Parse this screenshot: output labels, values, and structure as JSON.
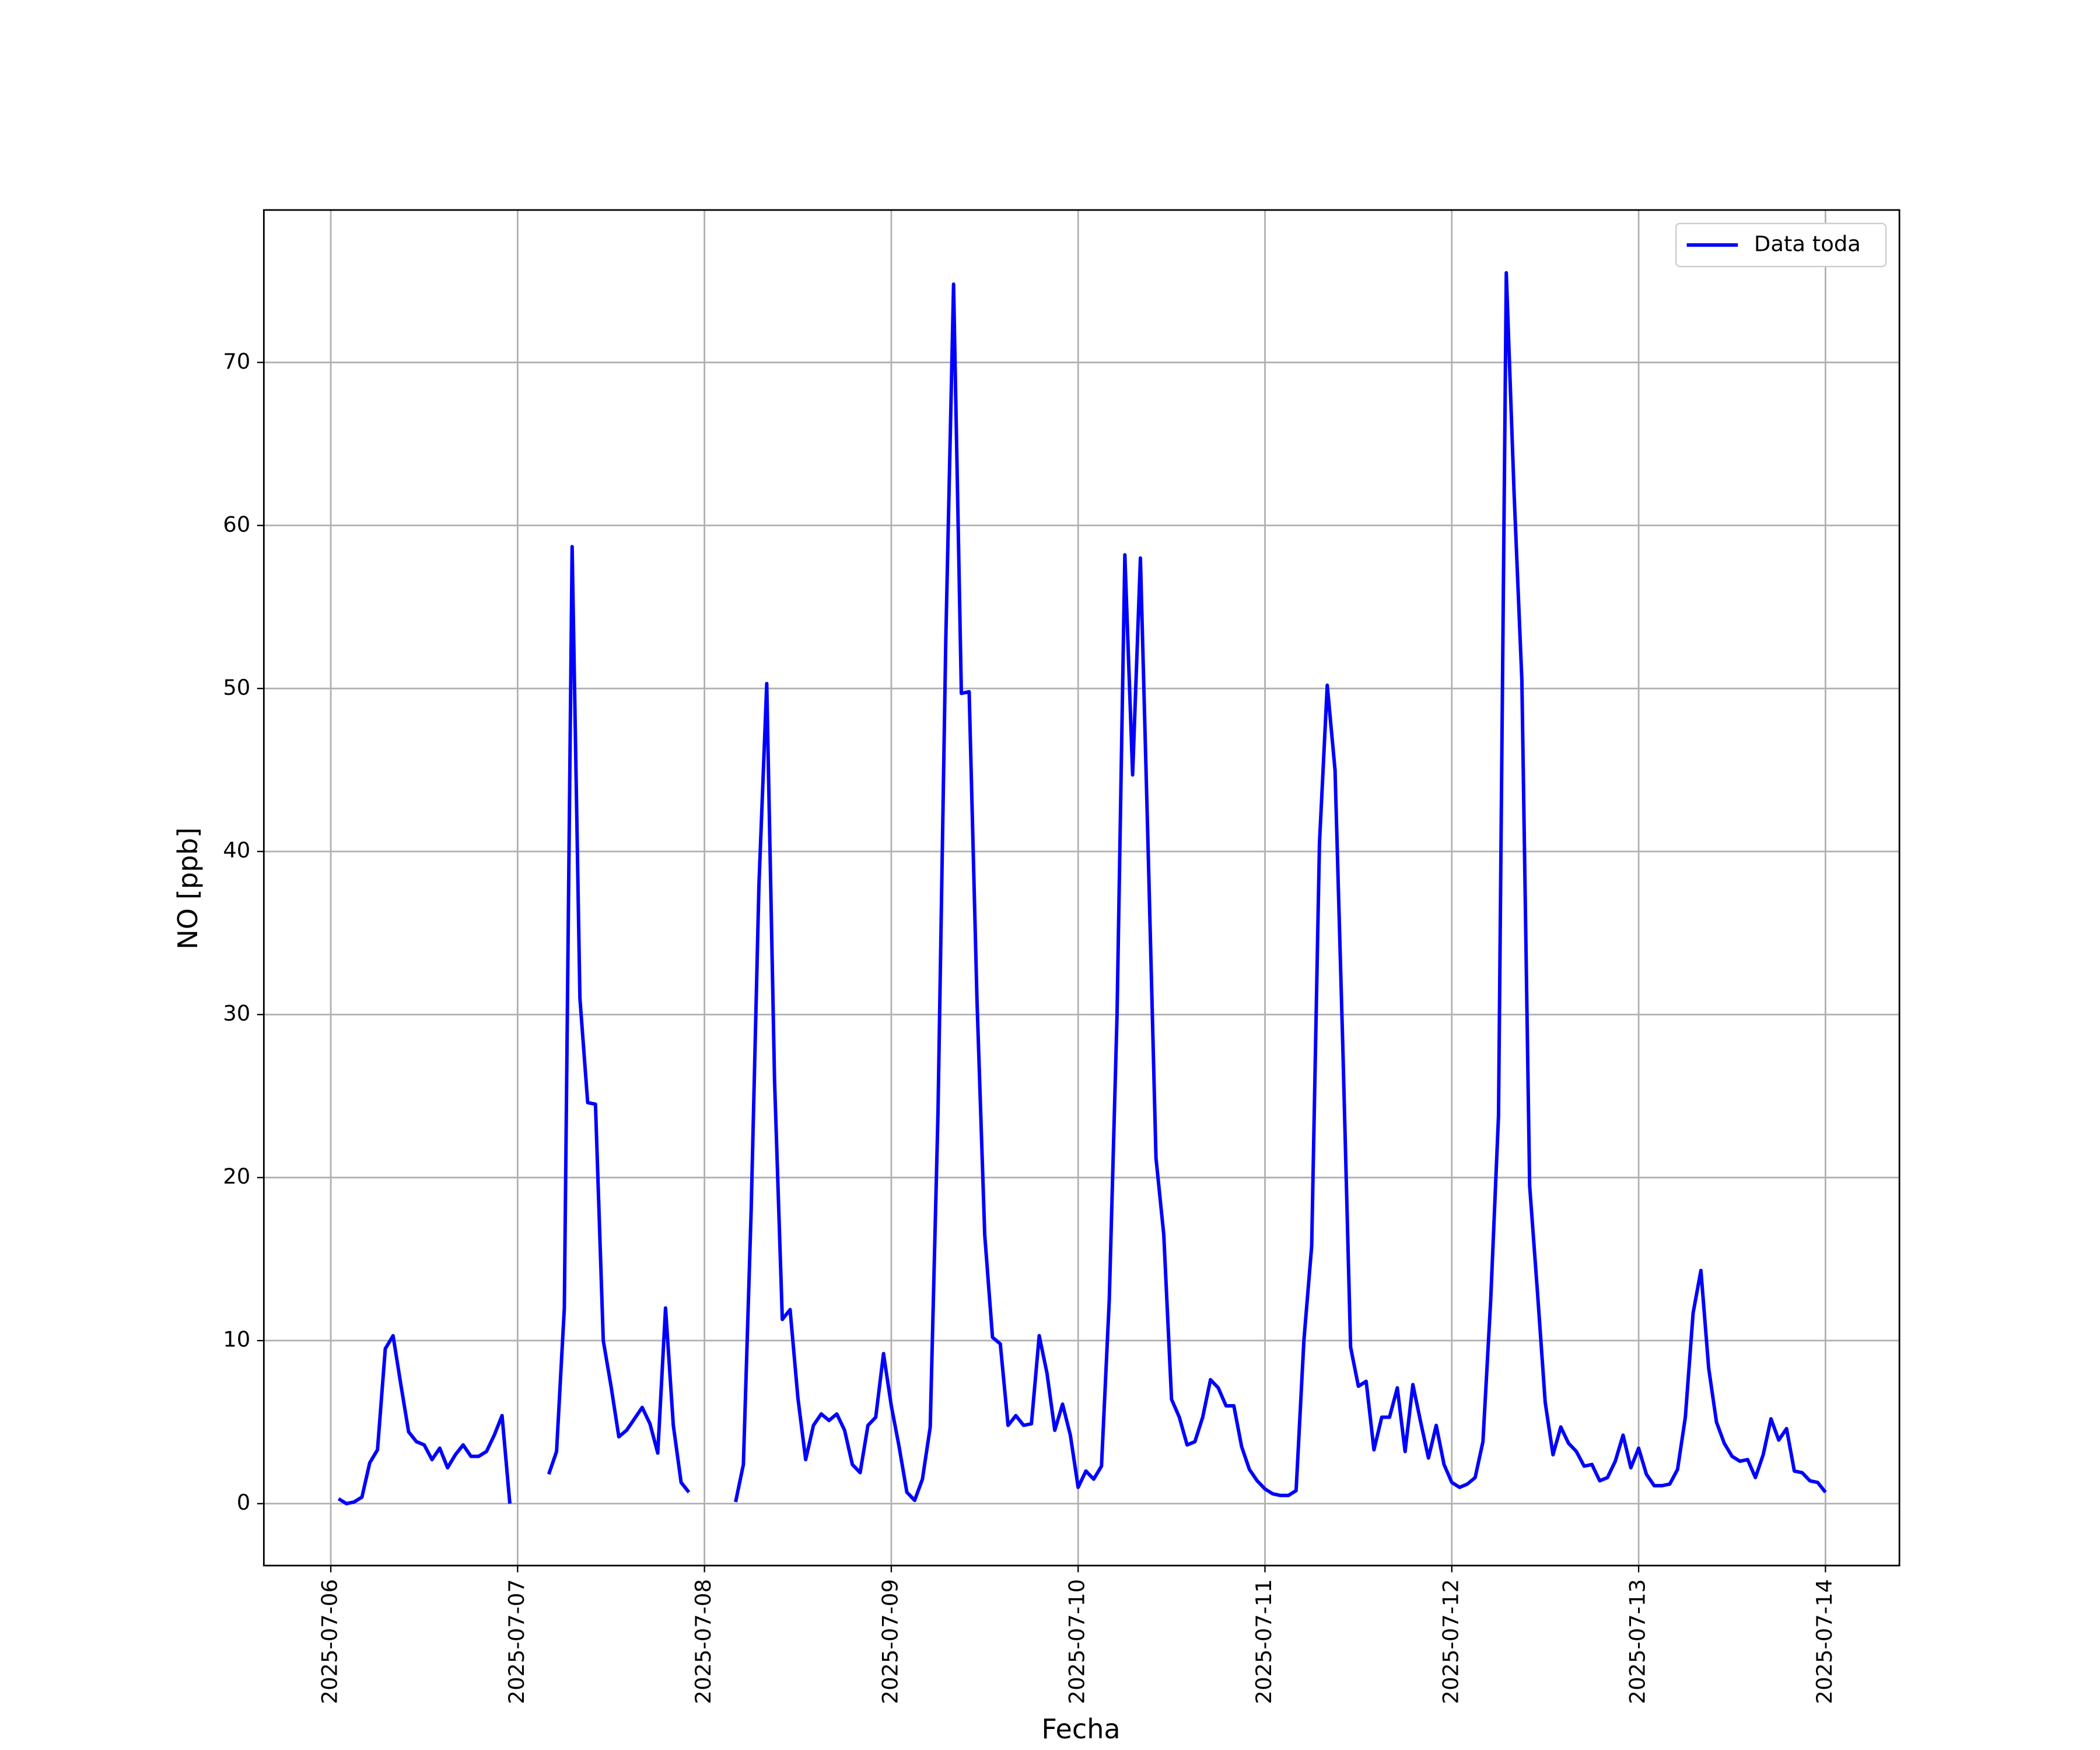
{
  "chart_data": {
    "type": "line",
    "xlabel": "Fecha",
    "ylabel": "NO [ppb]",
    "x": [
      "2025-07-06 01:00",
      "2025-07-06 02:00",
      "2025-07-06 03:00",
      "2025-07-06 04:00",
      "2025-07-06 05:00",
      "2025-07-06 06:00",
      "2025-07-06 07:00",
      "2025-07-06 08:00",
      "2025-07-06 09:00",
      "2025-07-06 10:00",
      "2025-07-06 11:00",
      "2025-07-06 12:00",
      "2025-07-06 13:00",
      "2025-07-06 14:00",
      "2025-07-06 15:00",
      "2025-07-06 16:00",
      "2025-07-06 17:00",
      "2025-07-06 18:00",
      "2025-07-06 19:00",
      "2025-07-06 20:00",
      "2025-07-06 21:00",
      "2025-07-06 22:00",
      "2025-07-06 23:00",
      "2025-07-07 00:00",
      "2025-07-07 01:00",
      "2025-07-07 02:00",
      "2025-07-07 03:00",
      "2025-07-07 04:00",
      "2025-07-07 05:00",
      "2025-07-07 06:00",
      "2025-07-07 07:00",
      "2025-07-07 08:00",
      "2025-07-07 09:00",
      "2025-07-07 10:00",
      "2025-07-07 11:00",
      "2025-07-07 12:00",
      "2025-07-07 13:00",
      "2025-07-07 14:00",
      "2025-07-07 15:00",
      "2025-07-07 16:00",
      "2025-07-07 17:00",
      "2025-07-07 18:00",
      "2025-07-07 19:00",
      "2025-07-07 20:00",
      "2025-07-07 21:00",
      "2025-07-07 22:00",
      "2025-07-07 23:00",
      "2025-07-08 00:00",
      "2025-07-08 01:00",
      "2025-07-08 02:00",
      "2025-07-08 03:00",
      "2025-07-08 04:00",
      "2025-07-08 05:00",
      "2025-07-08 06:00",
      "2025-07-08 07:00",
      "2025-07-08 08:00",
      "2025-07-08 09:00",
      "2025-07-08 10:00",
      "2025-07-08 11:00",
      "2025-07-08 12:00",
      "2025-07-08 13:00",
      "2025-07-08 14:00",
      "2025-07-08 15:00",
      "2025-07-08 16:00",
      "2025-07-08 17:00",
      "2025-07-08 18:00",
      "2025-07-08 19:00",
      "2025-07-08 20:00",
      "2025-07-08 21:00",
      "2025-07-08 22:00",
      "2025-07-08 23:00",
      "2025-07-09 00:00",
      "2025-07-09 01:00",
      "2025-07-09 02:00",
      "2025-07-09 03:00",
      "2025-07-09 04:00",
      "2025-07-09 05:00",
      "2025-07-09 06:00",
      "2025-07-09 07:00",
      "2025-07-09 08:00",
      "2025-07-09 09:00",
      "2025-07-09 10:00",
      "2025-07-09 11:00",
      "2025-07-09 12:00",
      "2025-07-09 13:00",
      "2025-07-09 14:00",
      "2025-07-09 15:00",
      "2025-07-09 16:00",
      "2025-07-09 17:00",
      "2025-07-09 18:00",
      "2025-07-09 19:00",
      "2025-07-09 20:00",
      "2025-07-09 21:00",
      "2025-07-09 22:00",
      "2025-07-09 23:00",
      "2025-07-10 00:00",
      "2025-07-10 01:00",
      "2025-07-10 02:00",
      "2025-07-10 03:00",
      "2025-07-10 04:00",
      "2025-07-10 05:00",
      "2025-07-10 06:00",
      "2025-07-10 07:00",
      "2025-07-10 08:00",
      "2025-07-10 09:00",
      "2025-07-10 10:00",
      "2025-07-10 11:00",
      "2025-07-10 12:00",
      "2025-07-10 13:00",
      "2025-07-10 14:00",
      "2025-07-10 15:00",
      "2025-07-10 16:00",
      "2025-07-10 17:00",
      "2025-07-10 18:00",
      "2025-07-10 19:00",
      "2025-07-10 20:00",
      "2025-07-10 21:00",
      "2025-07-10 22:00",
      "2025-07-10 23:00",
      "2025-07-11 00:00",
      "2025-07-11 01:00",
      "2025-07-11 02:00",
      "2025-07-11 03:00",
      "2025-07-11 04:00",
      "2025-07-11 05:00",
      "2025-07-11 06:00",
      "2025-07-11 07:00",
      "2025-07-11 08:00",
      "2025-07-11 09:00",
      "2025-07-11 10:00",
      "2025-07-11 11:00",
      "2025-07-11 12:00",
      "2025-07-11 13:00",
      "2025-07-11 14:00",
      "2025-07-11 15:00",
      "2025-07-11 16:00",
      "2025-07-11 17:00",
      "2025-07-11 18:00",
      "2025-07-11 19:00",
      "2025-07-11 20:00",
      "2025-07-11 21:00",
      "2025-07-11 22:00",
      "2025-07-11 23:00",
      "2025-07-12 00:00",
      "2025-07-12 01:00",
      "2025-07-12 02:00",
      "2025-07-12 03:00",
      "2025-07-12 04:00",
      "2025-07-12 05:00",
      "2025-07-12 06:00",
      "2025-07-12 07:00",
      "2025-07-12 08:00",
      "2025-07-12 09:00",
      "2025-07-12 10:00",
      "2025-07-12 11:00",
      "2025-07-12 12:00",
      "2025-07-12 13:00",
      "2025-07-12 14:00",
      "2025-07-12 15:00",
      "2025-07-12 16:00",
      "2025-07-12 17:00",
      "2025-07-12 18:00",
      "2025-07-12 19:00",
      "2025-07-12 20:00",
      "2025-07-12 21:00",
      "2025-07-12 22:00",
      "2025-07-12 23:00",
      "2025-07-13 00:00",
      "2025-07-13 01:00",
      "2025-07-13 02:00",
      "2025-07-13 03:00",
      "2025-07-13 04:00",
      "2025-07-13 05:00",
      "2025-07-13 06:00",
      "2025-07-13 07:00",
      "2025-07-13 08:00",
      "2025-07-13 09:00",
      "2025-07-13 10:00",
      "2025-07-13 11:00",
      "2025-07-13 12:00",
      "2025-07-13 13:00",
      "2025-07-13 14:00",
      "2025-07-13 15:00",
      "2025-07-13 16:00",
      "2025-07-13 17:00",
      "2025-07-13 18:00",
      "2025-07-13 19:00",
      "2025-07-13 20:00",
      "2025-07-13 21:00",
      "2025-07-13 22:00",
      "2025-07-13 23:00",
      "2025-07-14 00:00"
    ],
    "series": [
      {
        "name": "Data toda",
        "color": "#0000ff",
        "values": [
          0.3,
          0,
          0.1,
          0.4,
          2.5,
          3.3,
          9.5,
          10.3,
          7.3,
          4.4,
          3.8,
          3.6,
          2.7,
          3.4,
          2.2,
          3,
          3.6,
          2.9,
          2.9,
          3.2,
          4.2,
          5.4,
          0,
          null,
          null,
          null,
          null,
          1.8,
          3.2,
          12,
          58.7,
          31,
          24.6,
          24.5,
          10,
          7.2,
          4.1,
          4.5,
          5.2,
          5.9,
          4.9,
          3.1,
          12,
          4.8,
          1.3,
          0.7,
          null,
          null,
          null,
          null,
          null,
          0.1,
          2.4,
          18,
          38,
          50.3,
          26,
          11.3,
          11.9,
          6.5,
          2.7,
          4.8,
          5.5,
          5.1,
          5.5,
          4.5,
          2.4,
          1.9,
          4.8,
          5.3,
          9.2,
          6,
          3.5,
          0.7,
          0.2,
          1.5,
          4.7,
          24,
          53,
          74.8,
          49.7,
          49.8,
          31,
          16.5,
          10.2,
          9.8,
          4.8,
          5.4,
          4.8,
          4.9,
          10.3,
          8,
          4.5,
          6.1,
          4.2,
          1,
          2,
          1.5,
          2.3,
          12.5,
          30,
          58.2,
          44.7,
          58,
          40,
          21.2,
          16.5,
          6.4,
          5.3,
          3.6,
          3.8,
          5.3,
          7.6,
          7.1,
          6,
          6,
          3.5,
          2.1,
          1.4,
          0.9,
          0.6,
          0.5,
          0.5,
          0.8,
          10,
          15.8,
          40.5,
          50.2,
          45,
          28,
          9.6,
          7.2,
          7.5,
          3.3,
          5.3,
          5.3,
          7.1,
          3.2,
          7.3,
          5,
          2.8,
          4.8,
          2.4,
          1.3,
          1,
          1.2,
          1.6,
          3.8,
          12.5,
          23.8,
          75.5,
          62,
          50.5,
          19.5,
          13,
          6.2,
          3,
          4.7,
          3.7,
          3.2,
          2.3,
          2.4,
          1.4,
          1.6,
          2.6,
          4.2,
          2.2,
          3.4,
          1.8,
          1.1,
          1.1,
          1.2,
          2.1,
          5.3,
          11.7,
          14.3,
          8.3,
          5,
          3.7,
          2.9,
          2.6,
          2.7,
          1.6,
          3,
          5.2,
          3.9,
          4.6,
          2,
          1.9,
          1.4,
          1.3,
          0.7
        ]
      }
    ],
    "xlim": [
      "2025-07-05 15:24",
      "2025-07-14 09:30"
    ],
    "xticks": [
      "2025-07-06",
      "2025-07-07",
      "2025-07-08",
      "2025-07-09",
      "2025-07-10",
      "2025-07-11",
      "2025-07-12",
      "2025-07-13",
      "2025-07-14"
    ],
    "ylim": [
      -3.8,
      79.35
    ],
    "yticks": [
      0,
      10,
      20,
      30,
      40,
      50,
      60,
      70
    ],
    "grid": true,
    "legend": "upper right"
  }
}
